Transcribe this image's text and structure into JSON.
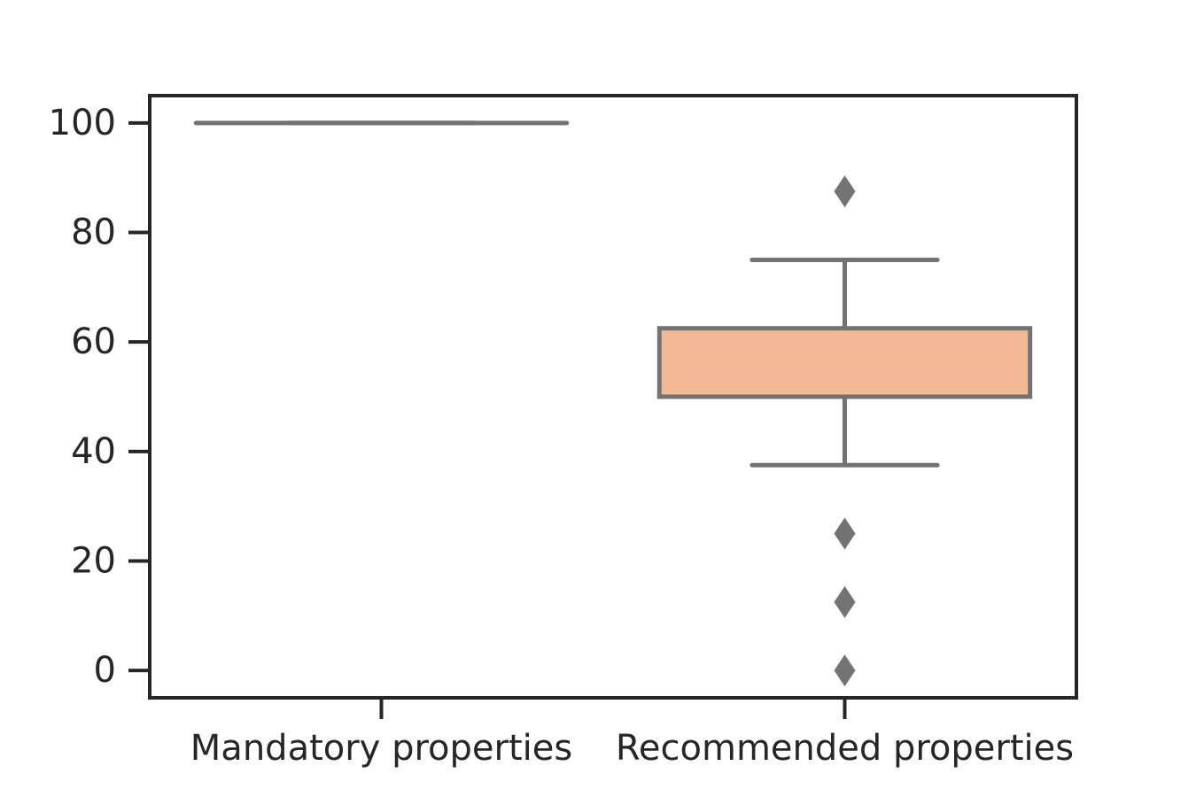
{
  "chart_data": {
    "type": "box",
    "categories": [
      "Mandatory properties",
      "Recommended properties"
    ],
    "boxes": [
      {
        "category": "Mandatory properties",
        "min": 100,
        "q1": 100,
        "median": 100,
        "q3": 100,
        "max": 100,
        "outliers": [],
        "fill": "#f1b994"
      },
      {
        "category": "Recommended properties",
        "min": 37.5,
        "q1": 50,
        "median": 50,
        "q3": 62.5,
        "max": 75,
        "outliers": [
          87.5,
          25,
          12.5,
          0
        ],
        "fill": "#f1b994"
      }
    ],
    "yticks": [
      0,
      20,
      40,
      60,
      80,
      100
    ],
    "ylim": [
      -5,
      105
    ],
    "line_color": "#737373",
    "axis_color": "#262626",
    "grid": false
  }
}
